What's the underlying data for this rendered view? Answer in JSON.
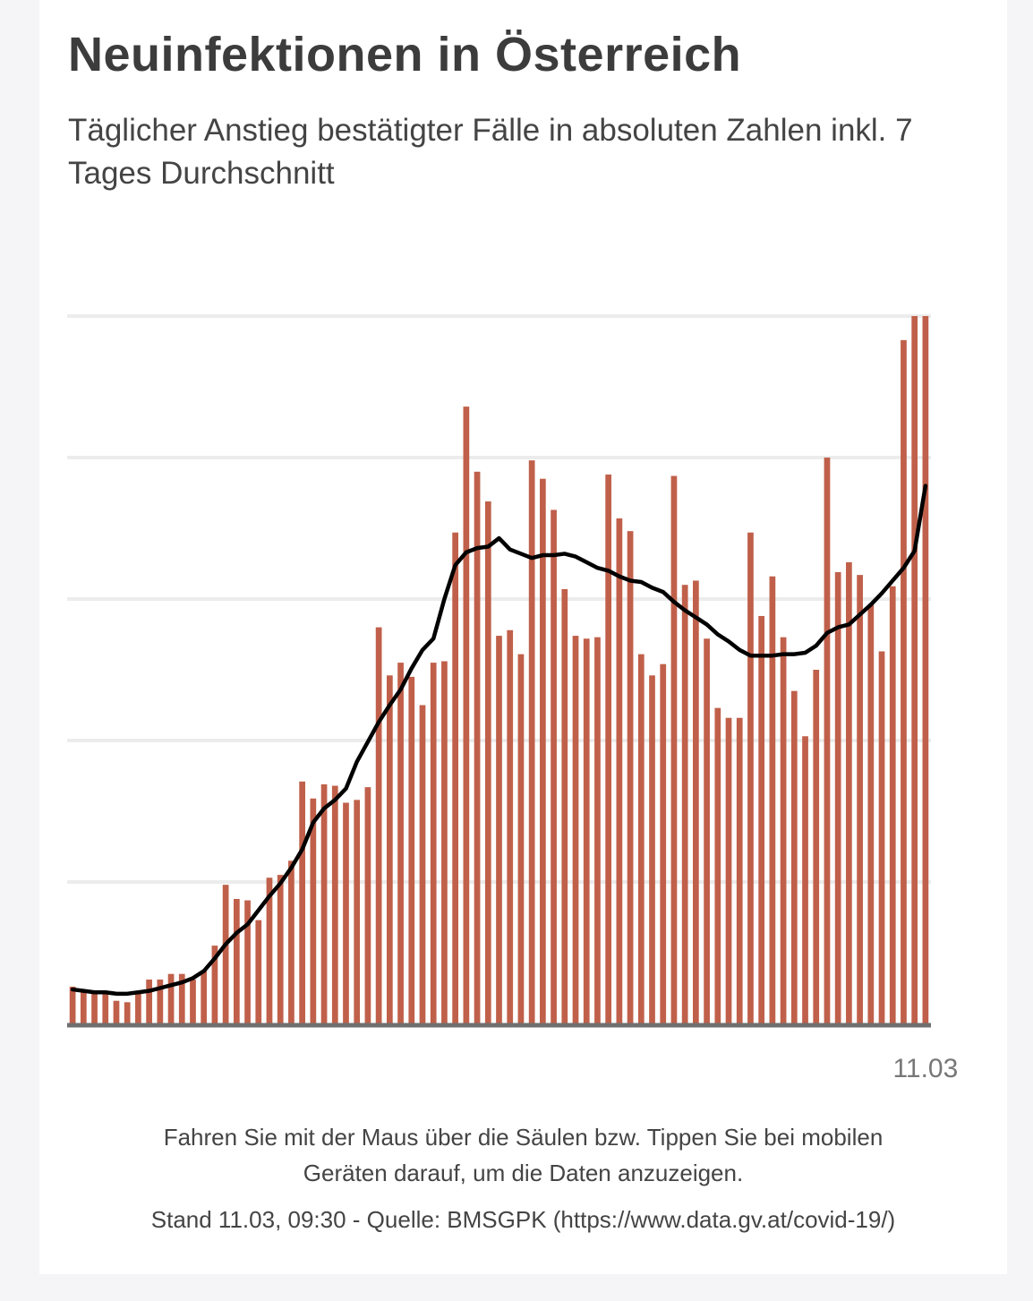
{
  "header": {
    "title": "Neuinfektionen in Österreich",
    "subtitle": "Täglicher Anstieg bestätigter Fälle in absoluten Zahlen inkl. 7 Tages Durchschnitt"
  },
  "chart_data": {
    "type": "bar",
    "title": "Neuinfektionen in Österreich",
    "subtitle": "Täglicher Anstieg bestätigter Fälle in absoluten Zahlen inkl. 7 Tages Durchschnitt",
    "xlabel": "",
    "ylabel": "",
    "x_tick_labels": [
      "11.03"
    ],
    "grid": true,
    "ylim": [
      0,
      5
    ],
    "bar_color": "#c0604a",
    "line_color": "#000000",
    "series": [
      {
        "type": "bar",
        "values": [
          0.26,
          0.23,
          0.21,
          0.21,
          0.16,
          0.15,
          0.23,
          0.31,
          0.31,
          0.35,
          0.35,
          0.31,
          0.37,
          0.55,
          0.98,
          0.88,
          0.87,
          0.73,
          1.03,
          1.05,
          1.15,
          1.71,
          1.59,
          1.69,
          1.68,
          1.56,
          1.58,
          1.67,
          2.8,
          2.46,
          2.55,
          2.45,
          2.25,
          2.55,
          2.56,
          3.47,
          4.36,
          3.9,
          3.69,
          2.74,
          2.78,
          2.61,
          3.98,
          3.85,
          3.63,
          3.07,
          2.74,
          2.72,
          2.73,
          3.88,
          3.57,
          3.48,
          2.61,
          2.46,
          2.54,
          3.87,
          3.1,
          3.13,
          2.72,
          2.23,
          2.16,
          2.16,
          3.47,
          2.88,
          3.16,
          2.73,
          2.35,
          2.03,
          2.5,
          4.0,
          3.19,
          3.26,
          3.17,
          2.96,
          2.63,
          3.09,
          4.83,
          5.0,
          5.0
        ]
      },
      {
        "type": "line",
        "values": [
          0.24,
          0.23,
          0.22,
          0.22,
          0.21,
          0.21,
          0.22,
          0.23,
          0.25,
          0.27,
          0.29,
          0.32,
          0.37,
          0.46,
          0.56,
          0.64,
          0.7,
          0.8,
          0.9,
          0.99,
          1.1,
          1.23,
          1.42,
          1.52,
          1.58,
          1.66,
          1.85,
          1.99,
          2.13,
          2.25,
          2.36,
          2.51,
          2.64,
          2.72,
          3.0,
          3.24,
          3.33,
          3.36,
          3.37,
          3.43,
          3.35,
          3.32,
          3.29,
          3.31,
          3.31,
          3.32,
          3.3,
          3.26,
          3.22,
          3.2,
          3.16,
          3.13,
          3.12,
          3.08,
          3.05,
          2.98,
          2.92,
          2.87,
          2.82,
          2.75,
          2.7,
          2.64,
          2.6,
          2.6,
          2.6,
          2.61,
          2.61,
          2.62,
          2.67,
          2.76,
          2.8,
          2.82,
          2.89,
          2.96,
          3.04,
          3.13,
          3.22,
          3.34,
          3.8
        ]
      }
    ]
  },
  "footer": {
    "hover_note_line1": "Fahren Sie mit der Maus über die Säulen bzw. Tippen Sie bei mobilen",
    "hover_note_line2": "Geräten darauf, um die Daten anzuzeigen.",
    "source": "Stand 11.03, 09:30 - Quelle: BMSGPK (https://www.data.gv.at/covid-19/)"
  }
}
